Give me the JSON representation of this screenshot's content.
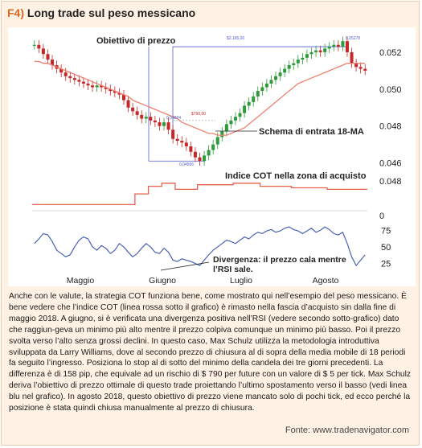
{
  "header": {
    "tag": "F4)",
    "title": "Long trade sul peso messicano"
  },
  "annotations": {
    "target": "Obiettivo di prezzo",
    "entry": "Schema di entrata 18-MA",
    "cot": "Indice COT nella zona di acquisto",
    "divergence_line1": "Divergenza: il prezzo cala mentre",
    "divergence_line2": "l’RSI sale.",
    "price_top": "$2.165,00",
    "price_mid": "0,04824",
    "price_stop": "$790,00",
    "price_low": "0,04566",
    "price_high": "0,05278"
  },
  "chart_data": {
    "type": "line",
    "xlabels": [
      "Maggio",
      "Giugno",
      "Luglio",
      "Agosto"
    ],
    "price_ticks": [
      "0.052",
      "0.050",
      "0.048",
      "0.046"
    ],
    "cot_ticks": [
      "0.048",
      "0"
    ],
    "rsi_ticks": [
      "75",
      "50",
      "25"
    ],
    "price_panel": {
      "series": [
        {
          "name": "candles-close",
          "values": [
            0.0524,
            0.0522,
            0.0519,
            0.0516,
            0.0513,
            0.0511,
            0.0509,
            0.0507,
            0.0506,
            0.0505,
            0.0504,
            0.0503,
            0.0502,
            0.0501,
            0.0502,
            0.0501,
            0.05,
            0.0499,
            0.0498,
            0.0497,
            0.0494,
            0.049,
            0.0488,
            0.0486,
            0.0484,
            0.0485,
            0.0483,
            0.0482,
            0.048,
            0.0482,
            0.0478,
            0.0473,
            0.0472,
            0.0471,
            0.0469,
            0.0466,
            0.0463,
            0.0461,
            0.0464,
            0.0467,
            0.047,
            0.0474,
            0.0477,
            0.0481,
            0.0483,
            0.0485,
            0.0487,
            0.0491,
            0.0493,
            0.0496,
            0.0499,
            0.0501,
            0.0503,
            0.0505,
            0.0507,
            0.0509,
            0.0511,
            0.0513,
            0.0514,
            0.0516,
            0.0517,
            0.0519,
            0.052,
            0.0521,
            0.052,
            0.0522,
            0.0523,
            0.0524,
            0.0523,
            0.0526,
            0.052,
            0.0514,
            0.0512,
            0.0511,
            0.051
          ]
        },
        {
          "name": "18-MA",
          "values": [
            0.0515,
            0.0515,
            0.0514,
            0.0514,
            0.0513,
            0.0512,
            0.0511,
            0.051,
            0.0509,
            0.0508,
            0.0507,
            0.0506,
            0.0505,
            0.0504,
            0.0503,
            0.0502,
            0.0501,
            0.05,
            0.0499,
            0.0498,
            0.0497,
            0.0496,
            0.0494,
            0.0493,
            0.0492,
            0.0491,
            0.049,
            0.0489,
            0.0488,
            0.0487,
            0.0486,
            0.0485,
            0.0484,
            0.0482,
            0.0481,
            0.048,
            0.0479,
            0.0478,
            0.0477,
            0.0476,
            0.0476,
            0.0475,
            0.0475,
            0.0475,
            0.0476,
            0.0477,
            0.0478,
            0.0479,
            0.0481,
            0.0483,
            0.0485,
            0.0487,
            0.0489,
            0.0491,
            0.0493,
            0.0495,
            0.0497,
            0.0499,
            0.0501,
            0.0503,
            0.0504,
            0.0505,
            0.0506,
            0.0507,
            0.0508,
            0.0509,
            0.051,
            0.0511,
            0.0512,
            0.0513,
            0.0514,
            0.0514,
            0.0514,
            0.0514,
            0.0514
          ]
        }
      ],
      "ylim": [
        0.0455,
        0.053
      ]
    },
    "cot_panel": {
      "series": [
        {
          "name": "COT",
          "values": [
            0.2,
            0.2,
            0.2,
            0.2,
            0.2,
            0.2,
            0.2,
            0.2,
            0.2,
            0.2,
            0.2,
            0.2,
            0.2,
            0.2,
            0.2,
            0.2,
            0.2,
            0.2,
            0.2,
            0.2,
            0.2,
            0.2,
            0.2,
            0.55,
            0.55,
            0.55,
            0.8,
            0.8,
            0.8,
            0.9,
            0.9,
            0.9,
            0.7,
            0.7,
            0.7,
            0.7,
            0.7,
            0.85,
            0.85,
            0.85,
            0.85,
            0.85,
            0.85,
            0.85,
            0.85,
            0.9,
            0.9,
            0.9,
            0.9,
            0.9,
            0.9,
            0.8,
            0.8,
            0.8,
            0.8,
            0.8,
            0.8,
            0.8,
            0.75,
            0.75,
            0.75,
            0.75,
            0.75,
            0.75,
            0.75,
            0.75,
            0.7,
            0.7,
            0.7,
            0.7,
            0.7,
            0.7,
            0.7,
            0.7,
            0.7
          ]
        }
      ],
      "ylim": [
        0,
        1
      ]
    },
    "rsi_panel": {
      "series": [
        {
          "name": "RSI",
          "values": [
            55,
            62,
            70,
            68,
            58,
            45,
            40,
            35,
            38,
            50,
            60,
            65,
            62,
            50,
            45,
            52,
            48,
            40,
            45,
            55,
            50,
            42,
            35,
            40,
            48,
            55,
            50,
            42,
            40,
            48,
            42,
            30,
            28,
            32,
            30,
            28,
            25,
            22,
            30,
            38,
            45,
            50,
            55,
            60,
            58,
            55,
            60,
            65,
            62,
            68,
            72,
            70,
            74,
            76,
            72,
            74,
            78,
            80,
            76,
            74,
            70,
            74,
            78,
            72,
            75,
            80,
            76,
            70,
            68,
            72,
            55,
            35,
            22,
            30,
            38
          ]
        }
      ],
      "ylim": [
        10,
        85
      ]
    }
  },
  "description": "Anche con le valute, la strategia COT funziona bene, come mostrato qui nell’esempio del peso messicano. È bene vedere che l’indice COT (linea rossa sotto il grafico) è rimasto nella fascia d’acquisto sin dalla fine di maggio 2018. A giugno, si è verificata una divergenza positiva nell’RSI (vedere secondo sotto-grafico) dato che raggiun-geva un minimo più alto mentre il prezzo colpiva comunque un minimo più basso. Poi il prezzo svolta verso l’alto senza grossi declini. In questo caso, Max Schulz utilizza la metodologia introduttiva sviluppata da Larry Williams, dove al secondo prezzo di chiusura al di sopra della media mobile di 18 periodi fa seguito l’ingresso. Posiziona lo stop al di sotto del minimo della candela dei tre giorni precedenti. La differenza è di 158 pip, che equivale ad un rischio di $ 790 per future con un valore di $ 5 per tick. Max Schulz deriva l’obiettivo di prezzo ottimale di questo trade proiettando l’ultimo spostamento verso il basso (vedi linea blu nel grafico). In agosto 2018, questo obiettivo di prezzo viene mancato solo di pochi tick, ed ecco perché la posizione è stata quindi chiusa manualmente al prezzo di chiusura.",
  "source": "Fonte: www.tradenavigator.com",
  "colors": {
    "accent": "#e0671e",
    "candle": "#2e9a3a",
    "candle_down": "#c62828",
    "ma": "#f08070",
    "cot": "#e8604a",
    "rsi": "#4a62b5",
    "target": "#4d5bd1"
  }
}
